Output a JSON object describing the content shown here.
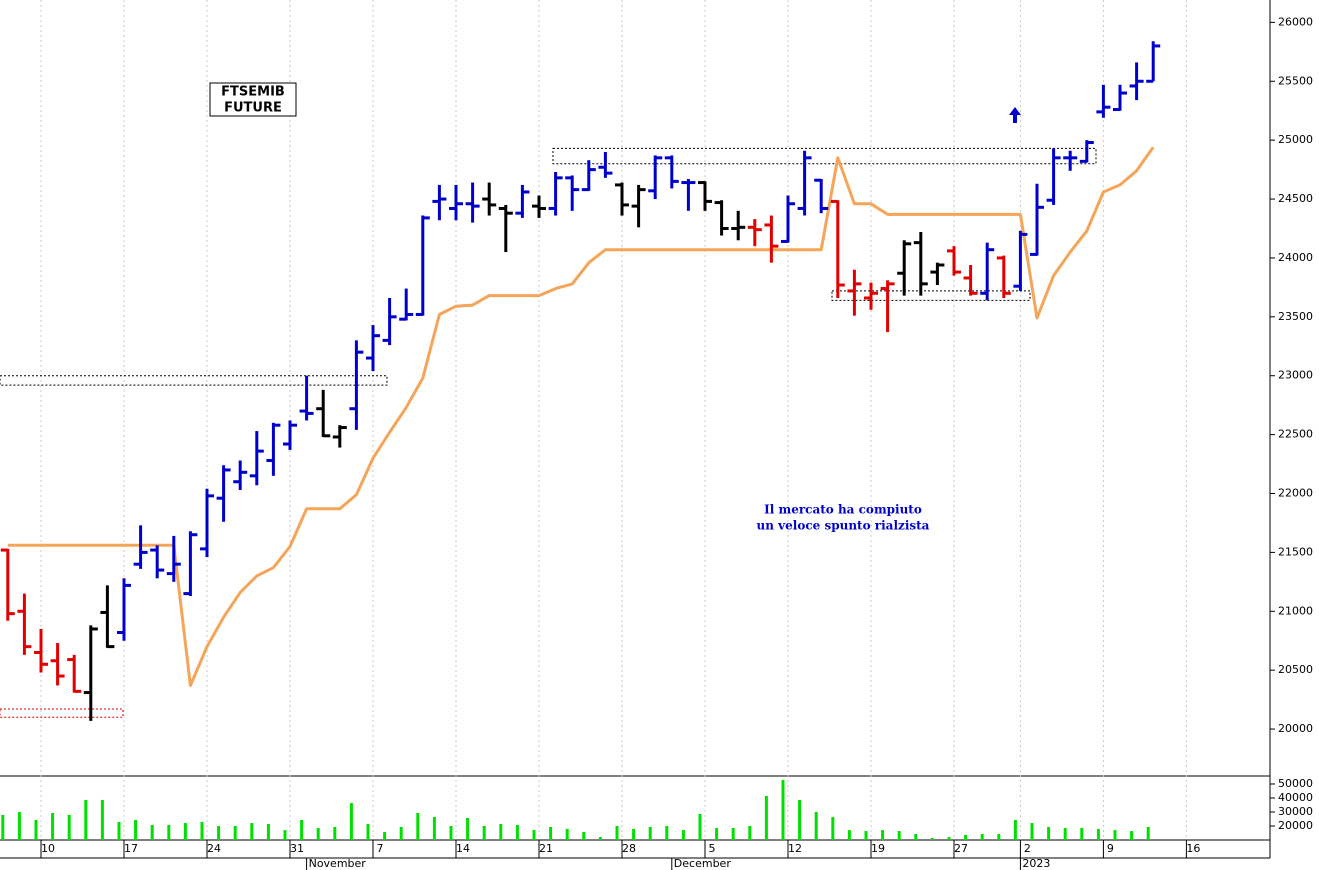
{
  "chart_data": [
    {
      "type": "ohlc",
      "categories": [
        null,
        null,
        "10",
        null,
        null,
        null,
        null,
        "17",
        null,
        null,
        null,
        null,
        "24",
        null,
        null,
        null,
        null,
        "31",
        null,
        null,
        null,
        null,
        "7",
        null,
        null,
        null,
        null,
        "14",
        null,
        null,
        null,
        null,
        "21",
        null,
        null,
        null,
        null,
        "28",
        null,
        null,
        null,
        null,
        "5",
        null,
        null,
        null,
        null,
        "12",
        null,
        null,
        null,
        null,
        "19",
        null,
        null,
        null,
        null,
        "27",
        null,
        null,
        null,
        "2",
        null,
        null,
        null,
        null,
        "9",
        null,
        null,
        null,
        null,
        "16",
        null,
        null,
        null,
        null,
        null
      ],
      "period_labels": [
        null,
        null,
        null,
        null,
        null,
        null,
        null,
        null,
        null,
        null,
        null,
        null,
        null,
        null,
        null,
        null,
        null,
        null,
        "November",
        null,
        null,
        null,
        null,
        null,
        null,
        null,
        null,
        null,
        null,
        null,
        null,
        null,
        null,
        null,
        null,
        null,
        null,
        null,
        null,
        null,
        "December",
        null,
        null,
        null,
        null,
        null,
        null,
        null,
        null,
        null,
        null,
        null,
        null,
        null,
        null,
        null,
        null,
        null,
        null,
        null,
        null,
        "2023",
        null,
        null,
        null,
        null,
        null,
        null,
        null,
        null,
        null,
        null,
        null,
        null,
        null,
        null,
        null
      ],
      "open": [
        21520,
        21000,
        20650,
        20580,
        20590,
        20310,
        20990,
        20820,
        21400,
        21520,
        21320,
        21150,
        21530,
        21960,
        22100,
        22150,
        22280,
        22420,
        22700,
        22720,
        22480,
        22720,
        23150,
        23300,
        23480,
        23520,
        24480,
        24420,
        24460,
        24500,
        24420,
        24380,
        24440,
        24420,
        24680,
        24580,
        24770,
        24620,
        24440,
        24570,
        24850,
        24640,
        24640,
        24470,
        24250,
        24260,
        24280,
        24140,
        24420,
        24660,
        24480,
        23720,
        23660,
        23740,
        23870,
        24130,
        23880,
        24060,
        23830,
        23700,
        24000,
        23760,
        24030,
        24490,
        24850,
        24820,
        25240,
        25260,
        25460,
        25500,
        null,
        null,
        null,
        null,
        null,
        null,
        null
      ],
      "high": [
        21530,
        21150,
        20850,
        20730,
        20630,
        20880,
        21220,
        21280,
        21730,
        21560,
        21640,
        21680,
        22040,
        22240,
        22280,
        22530,
        22600,
        22620,
        23000,
        22880,
        22580,
        23300,
        23430,
        23660,
        23740,
        24360,
        24620,
        24620,
        24640,
        24640,
        24450,
        24620,
        24530,
        24730,
        24700,
        24830,
        24900,
        24640,
        24620,
        24870,
        24870,
        24670,
        24650,
        24490,
        24400,
        24330,
        24360,
        24530,
        24910,
        24670,
        24490,
        23900,
        23790,
        23810,
        24150,
        24220,
        23960,
        24100,
        23940,
        24130,
        24020,
        24230,
        24630,
        24930,
        24910,
        25000,
        25470,
        25470,
        25660,
        25840,
        null,
        null,
        null,
        null,
        null,
        null,
        null
      ],
      "low": [
        20920,
        20630,
        20480,
        20370,
        20310,
        20070,
        20690,
        20750,
        21360,
        21280,
        21250,
        21130,
        21460,
        21760,
        22030,
        22070,
        22150,
        22370,
        22620,
        22480,
        22390,
        22540,
        23040,
        23260,
        23470,
        23510,
        24320,
        24320,
        24300,
        24360,
        24050,
        24340,
        24340,
        24360,
        24400,
        24570,
        24680,
        24360,
        24260,
        24500,
        24590,
        24400,
        24400,
        24190,
        24150,
        24100,
        23960,
        24130,
        24360,
        24380,
        23660,
        23510,
        23560,
        23370,
        23680,
        23680,
        23770,
        23850,
        23680,
        23640,
        23660,
        23720,
        24020,
        24450,
        24740,
        24810,
        25190,
        25250,
        25340,
        25500,
        null,
        null,
        null,
        null,
        null,
        null,
        null
      ],
      "close": [
        20980,
        20700,
        20550,
        20450,
        20320,
        20850,
        20700,
        21220,
        21500,
        21350,
        21400,
        21650,
        21980,
        22200,
        22180,
        22360,
        22580,
        22580,
        22680,
        22490,
        22560,
        23200,
        23340,
        23500,
        23520,
        24340,
        24500,
        24460,
        24440,
        24450,
        24380,
        24560,
        24420,
        24680,
        24580,
        24750,
        24720,
        24450,
        24580,
        24850,
        24650,
        24640,
        24480,
        24250,
        24260,
        24240,
        24100,
        24460,
        24850,
        24420,
        23770,
        23780,
        23700,
        23780,
        24120,
        23780,
        23940,
        23880,
        23700,
        24070,
        23700,
        24200,
        24430,
        24850,
        24850,
        24980,
        25280,
        25400,
        25500,
        25800,
        null,
        null,
        null,
        null,
        null,
        null,
        null
      ],
      "colors": [
        "#e00000",
        "#e00000",
        "#e00000",
        "#e00000",
        "#e00000",
        "#000000",
        "#000000",
        "#0000cc",
        "#0000cc",
        "#0000cc",
        "#0000cc",
        "#0000cc",
        "#0000cc",
        "#0000cc",
        "#0000cc",
        "#0000cc",
        "#0000cc",
        "#0000cc",
        "#0000cc",
        "#000000",
        "#000000",
        "#0000cc",
        "#0000cc",
        "#0000cc",
        "#0000cc",
        "#0000cc",
        "#0000cc",
        "#0000cc",
        "#0000cc",
        "#000000",
        "#000000",
        "#0000cc",
        "#000000",
        "#0000cc",
        "#0000cc",
        "#0000cc",
        "#0000cc",
        "#000000",
        "#000000",
        "#0000cc",
        "#0000cc",
        "#0000cc",
        "#000000",
        "#000000",
        "#000000",
        "#e00000",
        "#e00000",
        "#0000cc",
        "#0000cc",
        "#0000cc",
        "#e00000",
        "#e00000",
        "#e00000",
        "#e00000",
        "#000000",
        "#000000",
        "#000000",
        "#e00000",
        "#e00000",
        "#0000cc",
        "#e00000",
        "#0000cc",
        "#0000cc",
        "#0000cc",
        "#0000cc",
        "#0000cc",
        "#0000cc",
        "#0000cc",
        "#0000cc",
        "#0000cc",
        null,
        null,
        null,
        null,
        null,
        null,
        null
      ],
      "stop_line": {
        "color": "#f5a55a",
        "values": [
          21560,
          21560,
          21560,
          21560,
          21560,
          21560,
          21560,
          21560,
          21560,
          21560,
          21560,
          20370,
          20700,
          20950,
          21160,
          21300,
          21370,
          21550,
          21870,
          21870,
          21870,
          21990,
          22300,
          22520,
          22730,
          22980,
          23520,
          23590,
          23600,
          23680,
          23680,
          23680,
          23680,
          23740,
          23780,
          23960,
          24070,
          24070,
          24070,
          24070,
          24070,
          24070,
          24070,
          24070,
          24070,
          24070,
          24070,
          24070,
          24070,
          24070,
          24850,
          24460,
          24460,
          24370,
          24370,
          24370,
          24370,
          24370,
          24370,
          24370,
          24370,
          24370,
          23490,
          23850,
          24050,
          24230,
          24560,
          24620,
          24740,
          24940,
          null,
          null,
          null,
          null,
          null,
          null,
          null
        ]
      },
      "zones": [
        {
          "range": [
            22920,
            23000
          ],
          "color": "#000000"
        },
        {
          "range": [
            24800,
            24930
          ],
          "color": "#000000"
        },
        {
          "range": [
            23640,
            23720
          ],
          "color": "#000000"
        },
        {
          "range": [
            20100,
            20170
          ],
          "color": "#e00000"
        }
      ],
      "ylim": [
        19610,
        26190
      ],
      "yticks": [
        20000,
        20500,
        21000,
        21500,
        22000,
        22500,
        23000,
        23500,
        24000,
        24500,
        25000,
        25500,
        26000
      ],
      "grid": "x",
      "label_box": [
        "FTSEMIB",
        "FUTURE"
      ],
      "annotation": [
        "Il mercato ha compiuto",
        "un veloce spunto rialzista"
      ]
    },
    {
      "type": "bar",
      "color": "#00e000",
      "values": [
        27900,
        30000,
        24300,
        29300,
        27900,
        38600,
        38600,
        22900,
        24300,
        20700,
        20700,
        22100,
        22900,
        20000,
        20000,
        22100,
        21400,
        17100,
        24300,
        18600,
        19300,
        36400,
        21400,
        15700,
        19300,
        29300,
        26400,
        20000,
        25700,
        20000,
        21400,
        20700,
        17100,
        19300,
        17900,
        15700,
        12100,
        20000,
        17900,
        19300,
        20000,
        17100,
        28600,
        18600,
        18600,
        20000,
        41400,
        52900,
        38600,
        30000,
        26400,
        17100,
        16400,
        17100,
        16400,
        14300,
        11400,
        12100,
        13600,
        14300,
        14300,
        24300,
        22100,
        19300,
        18600,
        18600,
        17900,
        17100,
        16400,
        19300,
        null,
        null,
        null,
        null,
        null,
        null,
        null
      ],
      "ylim": [
        10000,
        55700
      ],
      "yticks": [
        20000,
        30000,
        40000,
        50000
      ]
    }
  ]
}
